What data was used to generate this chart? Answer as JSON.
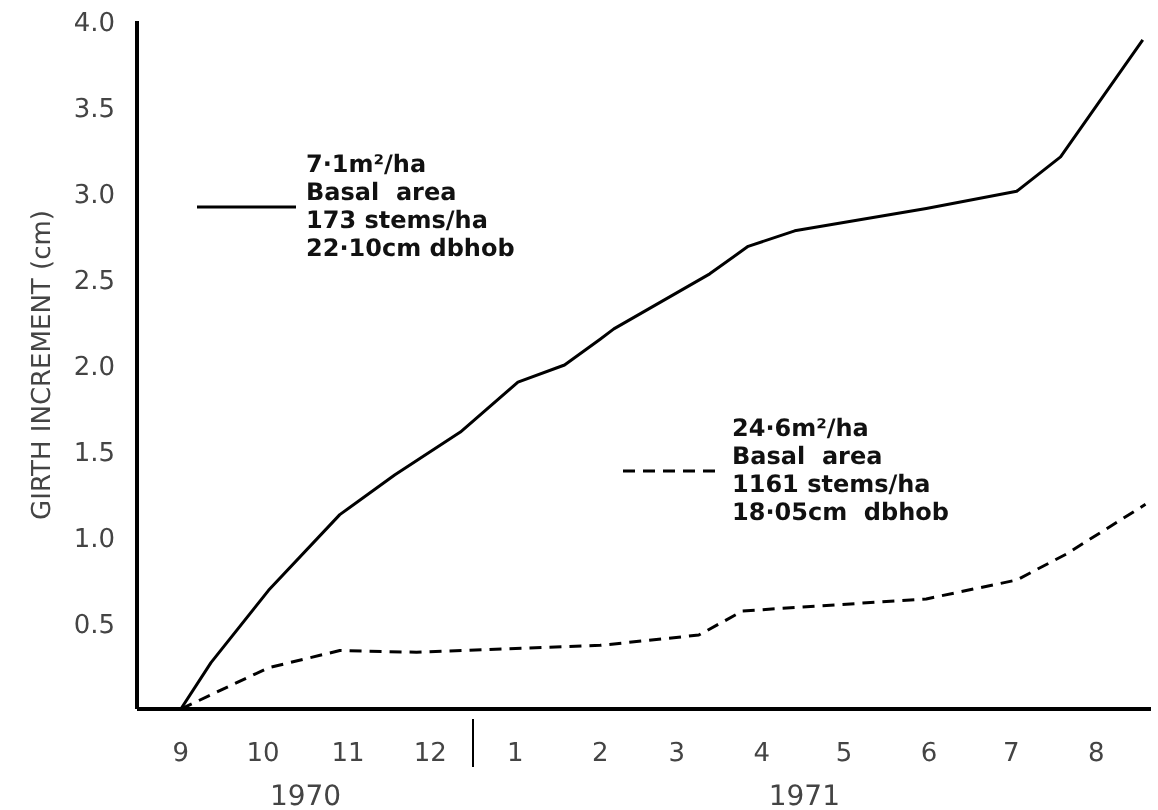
{
  "chart_data": {
    "type": "line",
    "ylabel": "GIRTH INCREMENT (cm)",
    "xlim": [
      "1970-08-16",
      "1971-08-21"
    ],
    "ylim": [
      0,
      4.0
    ],
    "xticks": [
      {
        "value": "1970-09-01",
        "label": "9"
      },
      {
        "value": "1970-10-01",
        "label": "10"
      },
      {
        "value": "1970-11-01",
        "label": "11"
      },
      {
        "value": "1970-12-01",
        "label": "12"
      },
      {
        "value": "1971-01-01",
        "label": "1"
      },
      {
        "value": "1971-02-01",
        "label": "2"
      },
      {
        "value": "1971-03-01",
        "label": "3"
      },
      {
        "value": "1971-04-01",
        "label": "4"
      },
      {
        "value": "1971-05-01",
        "label": "5"
      },
      {
        "value": "1971-06-01",
        "label": "6"
      },
      {
        "value": "1971-07-01",
        "label": "7"
      },
      {
        "value": "1971-08-01",
        "label": "8"
      }
    ],
    "yticks": [
      0.5,
      {
        "value": 1,
        "label": "1.0"
      },
      1.5,
      {
        "value": 2,
        "label": "2.0"
      },
      2.5,
      {
        "value": 3,
        "label": "3.0"
      },
      3.5,
      {
        "value": 4,
        "label": "4.0"
      }
    ],
    "grid": false,
    "legend": "top left",
    "marker": "none",
    "annotations": [
      "1970",
      "1971"
    ],
    "series": [
      {
        "name": "7·1m²/ha\nBasal  area\n173 stems/ha\n22·10cm dbhob",
        "color": "#000000",
        "line_style": "solid",
        "x": [
          "1970-09-01",
          "1970-09-12",
          "1970-10-03",
          "1970-10-29",
          "1970-11-18",
          "1970-12-12",
          "1971-01-02",
          "1971-01-19",
          "1971-02-01",
          "1971-02-06",
          "1971-03-13",
          "1971-03-27",
          "1971-04-13",
          "1971-05-31",
          "1971-07-03",
          "1971-07-19",
          "1971-08-18"
        ],
        "values": [
          0,
          0.27,
          0.69,
          1.13,
          1.36,
          1.61,
          1.9,
          2.0,
          2.15,
          2.21,
          2.53,
          2.69,
          2.78,
          2.91,
          3.01,
          3.21,
          3.89
        ]
      },
      {
        "name": "24·6m²/ha\nBasal  area\n1161 stems/ha\n18·05cm  dbhob",
        "color": "#000000",
        "line_style": "dashed",
        "x": [
          "1970-09-01",
          "1970-10-03",
          "1970-10-29",
          "1970-11-26",
          "1971-02-01",
          "1971-03-09",
          "1971-03-25",
          "1971-05-31",
          "1971-07-03",
          "1971-07-21",
          "1971-08-19"
        ],
        "values": [
          0,
          0.24,
          0.34,
          0.33,
          0.37,
          0.43,
          0.57,
          0.64,
          0.75,
          0.9,
          1.19
        ]
      }
    ]
  }
}
